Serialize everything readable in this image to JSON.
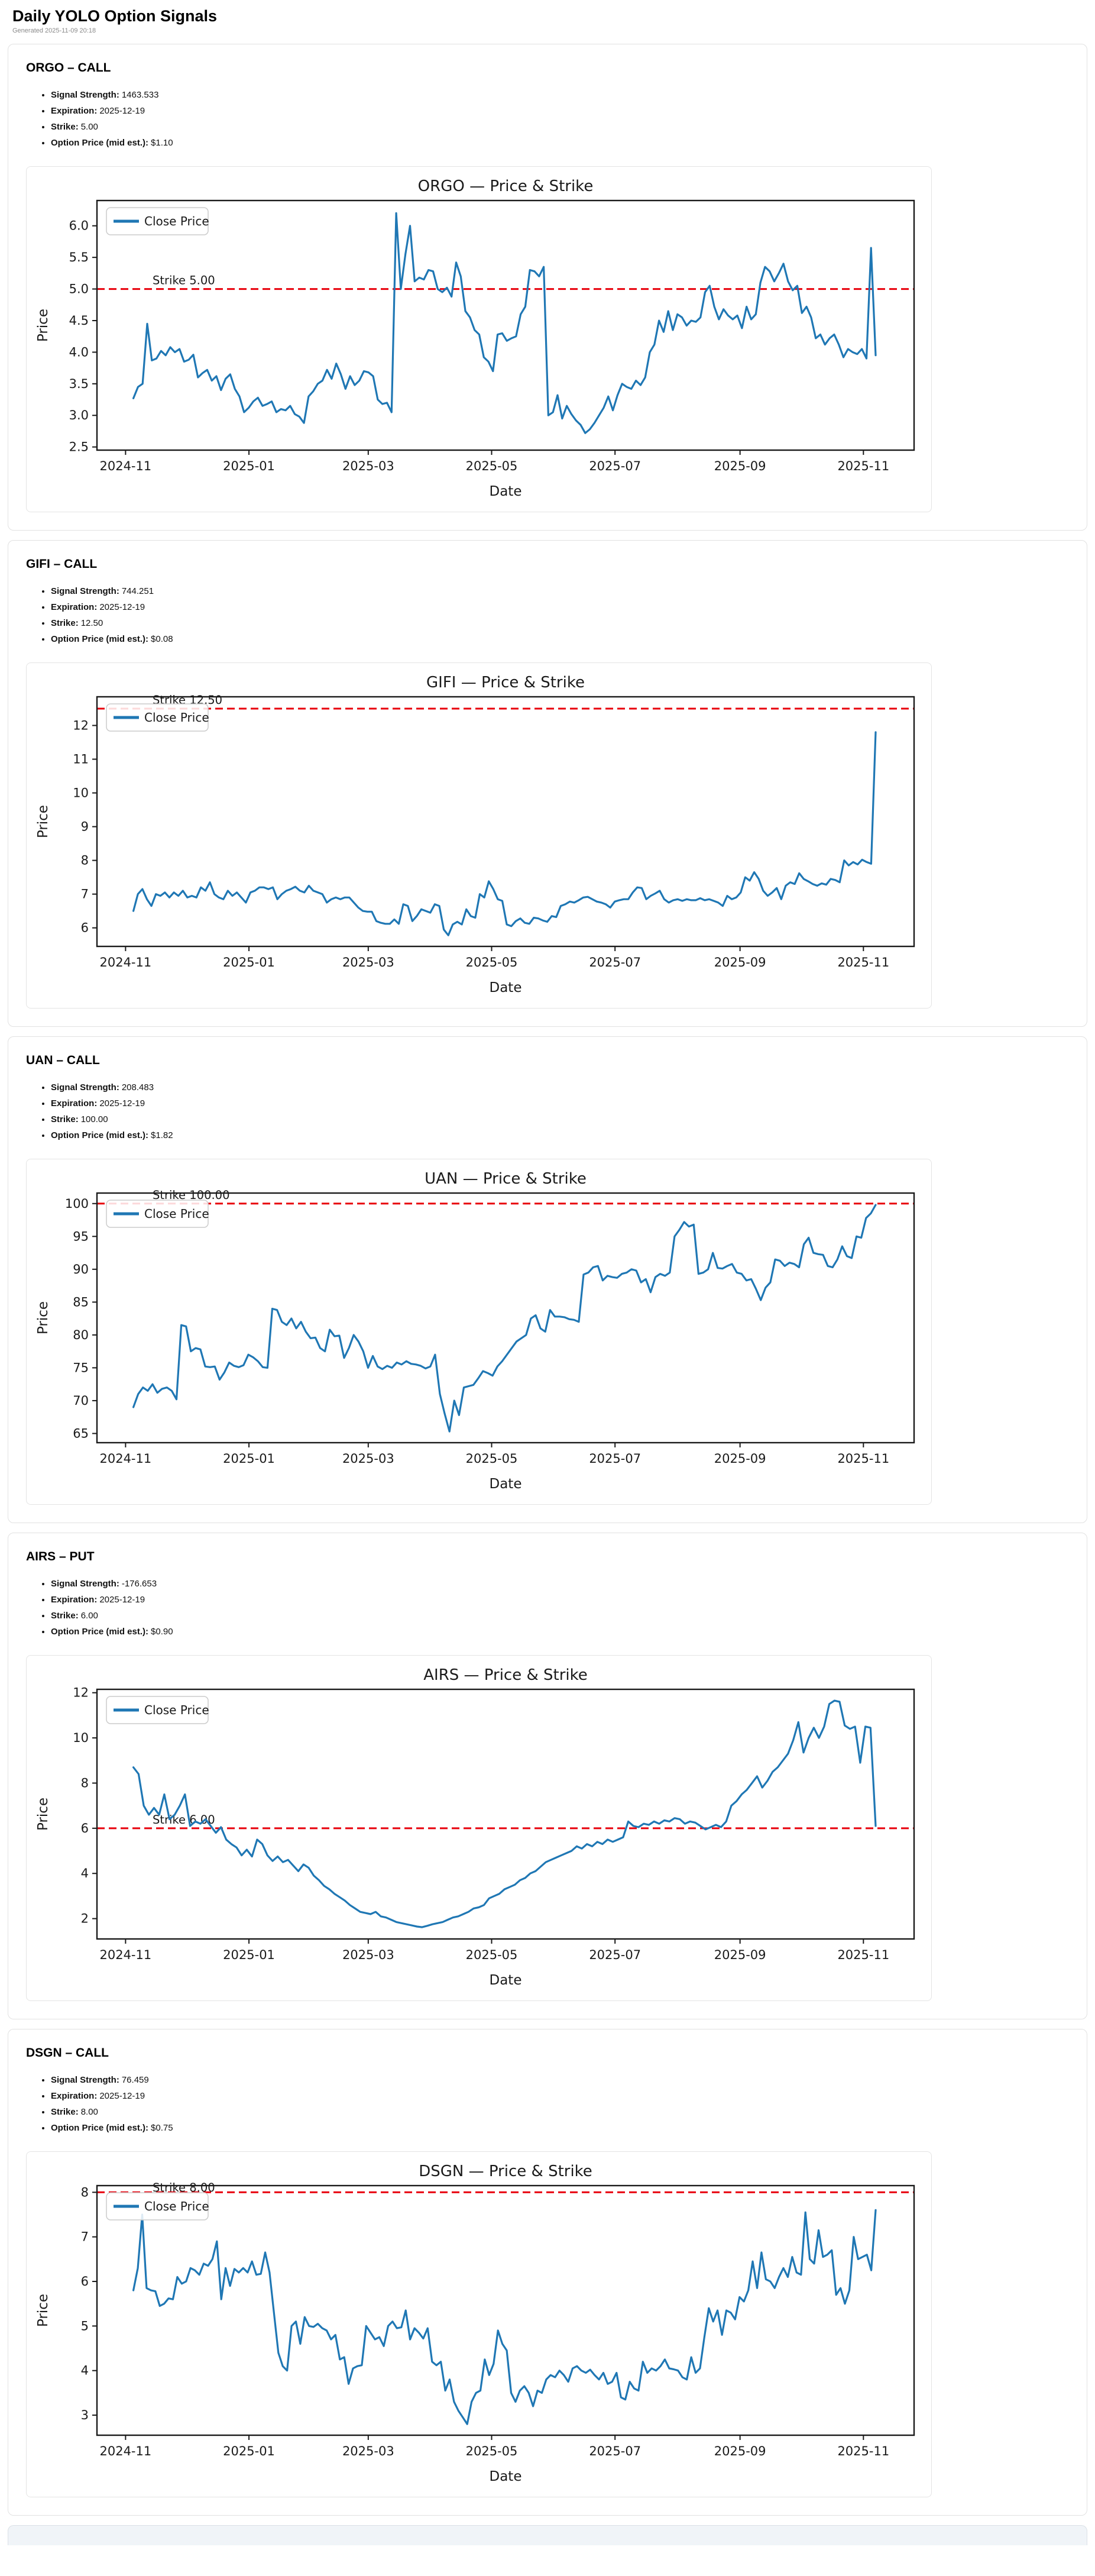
{
  "page": {
    "title": "Daily YOLO Option Signals",
    "generated": "Generated 2025-11-09 20:18"
  },
  "fact_labels": {
    "signal": "Signal Strength:",
    "expiration": "Expiration:",
    "strike": "Strike:",
    "option_price": "Option Price (mid est.):"
  },
  "sections": [
    {
      "heading": "ORGO – CALL",
      "signal": "1463.533",
      "expiration": "2025-12-19",
      "strike": "5.00",
      "option_price": "$1.10"
    },
    {
      "heading": "GIFI – CALL",
      "signal": "744.251",
      "expiration": "2025-12-19",
      "strike": "12.50",
      "option_price": "$0.08"
    },
    {
      "heading": "UAN – CALL",
      "signal": "208.483",
      "expiration": "2025-12-19",
      "strike": "100.00",
      "option_price": "$1.82"
    },
    {
      "heading": "AIRS – PUT",
      "signal": "-176.653",
      "expiration": "2025-12-19",
      "strike": "6.00",
      "option_price": "$0.90"
    },
    {
      "heading": "DSGN – CALL",
      "signal": "76.459",
      "expiration": "2025-12-19",
      "strike": "8.00",
      "option_price": "$0.75"
    }
  ],
  "chart_common": {
    "legend": "Close Price",
    "xlabel": "Date",
    "ylabel": "Price",
    "line_color": "#1f77b4",
    "strike_color": "#e8000b",
    "x_data_start": 0.0446,
    "x_data_end": 0.953,
    "x_ticks": [
      {
        "f": 0.035,
        "label": "2024-11"
      },
      {
        "f": 0.186,
        "label": "2025-01"
      },
      {
        "f": 0.332,
        "label": "2025-03"
      },
      {
        "f": 0.483,
        "label": "2025-05"
      },
      {
        "f": 0.634,
        "label": "2025-07"
      },
      {
        "f": 0.787,
        "label": "2025-09"
      },
      {
        "f": 0.938,
        "label": "2025-11"
      }
    ]
  },
  "chart_data": [
    {
      "type": "line",
      "title": "ORGO — Price & Strike",
      "xlabel": "Date",
      "ylabel": "Price",
      "legend": [
        "Close Price"
      ],
      "strike": 5.0,
      "strike_label": "Strike 5.00",
      "ylim": [
        2.45,
        6.4
      ],
      "y_ticks": [
        2.5,
        3.0,
        3.5,
        4.0,
        4.5,
        5.0,
        5.5,
        6.0
      ],
      "y_tick_labels": [
        "2.5",
        "3.0",
        "3.5",
        "4.0",
        "4.5",
        "5.0",
        "5.5",
        "6.0"
      ],
      "x_range": [
        "2024-11",
        "2025-11"
      ],
      "values": [
        3.27,
        3.45,
        3.5,
        4.45,
        3.87,
        3.9,
        4.02,
        3.95,
        4.08,
        4.0,
        4.05,
        3.85,
        3.88,
        3.96,
        3.6,
        3.67,
        3.72,
        3.55,
        3.62,
        3.4,
        3.58,
        3.65,
        3.42,
        3.3,
        3.05,
        3.12,
        3.22,
        3.28,
        3.15,
        3.18,
        3.22,
        3.05,
        3.1,
        3.08,
        3.15,
        3.02,
        2.98,
        2.88,
        3.3,
        3.38,
        3.5,
        3.55,
        3.72,
        3.58,
        3.82,
        3.65,
        3.42,
        3.62,
        3.48,
        3.55,
        3.7,
        3.68,
        3.62,
        3.25,
        3.18,
        3.2,
        3.05,
        6.2,
        5.0,
        5.55,
        6.0,
        5.12,
        5.18,
        5.15,
        5.3,
        5.28,
        5.0,
        4.95,
        5.02,
        4.88,
        5.42,
        5.2,
        4.65,
        4.55,
        4.35,
        4.28,
        3.92,
        3.85,
        3.7,
        4.28,
        4.3,
        4.18,
        4.22,
        4.25,
        4.6,
        4.72,
        5.3,
        5.28,
        5.2,
        5.35,
        3.0,
        3.05,
        3.32,
        2.95,
        3.15,
        3.02,
        2.92,
        2.85,
        2.72,
        2.78,
        2.88,
        3.0,
        3.12,
        3.3,
        3.08,
        3.32,
        3.5,
        3.45,
        3.42,
        3.55,
        3.48,
        3.6,
        4.0,
        4.12,
        4.5,
        4.32,
        4.65,
        4.35,
        4.6,
        4.55,
        4.42,
        4.5,
        4.48,
        4.55,
        4.95,
        5.05,
        4.72,
        4.52,
        4.68,
        4.58,
        4.52,
        4.58,
        4.38,
        4.72,
        4.52,
        4.6,
        5.1,
        5.35,
        5.28,
        5.12,
        5.25,
        5.4,
        5.12,
        4.98,
        5.05,
        4.62,
        4.72,
        4.55,
        4.22,
        4.28,
        4.12,
        4.22,
        4.28,
        4.12,
        3.92,
        4.05,
        4.0,
        3.97,
        4.05,
        3.9,
        5.65,
        3.95
      ]
    },
    {
      "type": "line",
      "title": "GIFI — Price & Strike",
      "xlabel": "Date",
      "ylabel": "Price",
      "legend": [
        "Close Price"
      ],
      "strike": 12.5,
      "strike_label": "Strike 12.50",
      "ylim": [
        5.45,
        12.85
      ],
      "y_ticks": [
        6,
        7,
        8,
        9,
        10,
        11,
        12
      ],
      "y_tick_labels": [
        "6",
        "7",
        "8",
        "9",
        "10",
        "11",
        "12"
      ],
      "x_range": [
        "2024-11",
        "2025-11"
      ],
      "values": [
        6.5,
        7.0,
        7.15,
        6.85,
        6.65,
        7.0,
        6.95,
        7.05,
        6.9,
        7.05,
        6.95,
        7.1,
        6.9,
        6.95,
        6.9,
        7.2,
        7.1,
        7.35,
        7.0,
        6.9,
        6.85,
        7.1,
        6.95,
        7.05,
        6.9,
        6.75,
        7.05,
        7.1,
        7.2,
        7.2,
        7.15,
        7.2,
        6.85,
        7.0,
        7.1,
        7.15,
        7.22,
        7.1,
        7.05,
        7.25,
        7.1,
        7.05,
        7.0,
        6.75,
        6.85,
        6.9,
        6.85,
        6.9,
        6.9,
        6.75,
        6.6,
        6.5,
        6.48,
        6.48,
        6.2,
        6.15,
        6.12,
        6.12,
        6.25,
        6.12,
        6.7,
        6.65,
        6.2,
        6.35,
        6.55,
        6.5,
        6.45,
        6.7,
        6.65,
        5.95,
        5.78,
        6.1,
        6.18,
        6.1,
        6.55,
        6.35,
        6.3,
        7.0,
        6.9,
        7.38,
        7.15,
        6.85,
        6.8,
        6.1,
        6.05,
        6.2,
        6.28,
        6.15,
        6.12,
        6.3,
        6.28,
        6.22,
        6.18,
        6.35,
        6.32,
        6.65,
        6.7,
        6.78,
        6.75,
        6.82,
        6.9,
        6.92,
        6.85,
        6.78,
        6.75,
        6.7,
        6.6,
        6.78,
        6.82,
        6.85,
        6.85,
        7.05,
        7.2,
        7.18,
        6.85,
        6.95,
        7.02,
        7.1,
        6.85,
        6.75,
        6.82,
        6.85,
        6.8,
        6.85,
        6.82,
        6.82,
        6.88,
        6.82,
        6.85,
        6.8,
        6.75,
        6.65,
        6.95,
        6.85,
        6.9,
        7.05,
        7.5,
        7.4,
        7.65,
        7.45,
        7.1,
        6.95,
        7.05,
        7.18,
        6.85,
        7.25,
        7.35,
        7.3,
        7.62,
        7.45,
        7.38,
        7.3,
        7.25,
        7.32,
        7.28,
        7.45,
        7.42,
        7.35,
        8.0,
        7.85,
        7.95,
        7.88,
        8.02,
        7.95,
        7.9,
        11.8
      ]
    },
    {
      "type": "line",
      "title": "UAN — Price & Strike",
      "xlabel": "Date",
      "ylabel": "Price",
      "legend": [
        "Close Price"
      ],
      "strike": 100.0,
      "strike_label": "Strike 100.00",
      "ylim": [
        63.6,
        101.6
      ],
      "y_ticks": [
        65,
        70,
        75,
        80,
        85,
        90,
        95,
        100
      ],
      "y_tick_labels": [
        "65",
        "70",
        "75",
        "80",
        "85",
        "90",
        "95",
        "100"
      ],
      "x_range": [
        "2024-11",
        "2025-11"
      ],
      "values": [
        69,
        71,
        72,
        71.5,
        72.5,
        71.2,
        71.8,
        72,
        71.5,
        70.2,
        81.5,
        81.3,
        77.5,
        78,
        77.8,
        75.2,
        75.1,
        75.2,
        73.2,
        74.3,
        75.8,
        75.3,
        75.1,
        75.4,
        77,
        76.6,
        76,
        75.1,
        75,
        84,
        83.8,
        82,
        81.5,
        82.5,
        81,
        82,
        80.5,
        79.5,
        79.6,
        78,
        77.5,
        80.8,
        79.8,
        79.9,
        76.5,
        78,
        80,
        79,
        77.5,
        75,
        76.8,
        75.2,
        74.8,
        75.3,
        75,
        75.8,
        75.5,
        76,
        75.6,
        75.5,
        75.3,
        74.9,
        75.2,
        77,
        71,
        68,
        65.3,
        70,
        67.8,
        72,
        72.2,
        72.4,
        73.4,
        74.5,
        74.2,
        73.8,
        75.2,
        76,
        77,
        78,
        79,
        79.5,
        80,
        82.5,
        83,
        81,
        80.5,
        83.8,
        82.8,
        82.8,
        82.7,
        82.4,
        82.3,
        82,
        89.2,
        89.5,
        90.3,
        90.5,
        88.3,
        89,
        88.8,
        88.7,
        89.3,
        89.5,
        90,
        89.8,
        88,
        88.5,
        86.5,
        88.8,
        89.3,
        89,
        89.5,
        95,
        96,
        97.2,
        96.5,
        96.8,
        89.3,
        89.5,
        90,
        92.5,
        90.2,
        90.1,
        90.5,
        90.8,
        89.5,
        89.3,
        88.3,
        88.5,
        87,
        85.3,
        87.2,
        88,
        91.5,
        91.3,
        90.5,
        91,
        90.8,
        90.3,
        93.8,
        94.8,
        92.5,
        92.3,
        92.2,
        90.5,
        90.3,
        91.5,
        93.5,
        92,
        91.7,
        95,
        94.8,
        97.8,
        98.5,
        99.8
      ]
    },
    {
      "type": "line",
      "title": "AIRS — Price & Strike",
      "xlabel": "Date",
      "ylabel": "Price",
      "legend": [
        "Close Price"
      ],
      "strike": 6.0,
      "strike_label": "Strike 6.00",
      "ylim": [
        1.1,
        12.15
      ],
      "y_ticks": [
        2,
        4,
        6,
        8,
        10,
        12
      ],
      "y_tick_labels": [
        "2",
        "4",
        "6",
        "8",
        "10",
        "12"
      ],
      "x_range": [
        "2024-11",
        "2025-11"
      ],
      "values": [
        8.7,
        8.4,
        7.0,
        6.6,
        6.9,
        6.6,
        7.5,
        6.4,
        6.6,
        7.0,
        7.5,
        6.1,
        6.3,
        6.2,
        6.4,
        6.1,
        5.8,
        6.05,
        5.5,
        5.3,
        5.15,
        4.8,
        5.05,
        4.75,
        5.5,
        5.3,
        4.8,
        4.55,
        4.75,
        4.5,
        4.6,
        4.35,
        4.1,
        4.4,
        4.25,
        3.9,
        3.7,
        3.45,
        3.3,
        3.1,
        2.95,
        2.8,
        2.6,
        2.45,
        2.3,
        2.25,
        2.2,
        2.3,
        2.1,
        2.05,
        1.95,
        1.85,
        1.8,
        1.75,
        1.7,
        1.65,
        1.62,
        1.68,
        1.75,
        1.8,
        1.85,
        1.95,
        2.05,
        2.1,
        2.2,
        2.3,
        2.45,
        2.5,
        2.6,
        2.9,
        3.0,
        3.1,
        3.3,
        3.4,
        3.5,
        3.7,
        3.8,
        4.0,
        4.1,
        4.3,
        4.5,
        4.6,
        4.7,
        4.8,
        4.9,
        5.0,
        5.2,
        5.1,
        5.3,
        5.2,
        5.4,
        5.3,
        5.5,
        5.4,
        5.5,
        5.6,
        6.3,
        6.1,
        6.05,
        6.2,
        6.15,
        6.3,
        6.2,
        6.35,
        6.3,
        6.45,
        6.4,
        6.2,
        6.3,
        6.25,
        6.1,
        5.95,
        6.05,
        6.15,
        6.05,
        6.3,
        7.0,
        7.2,
        7.5,
        7.7,
        8.0,
        8.3,
        7.8,
        8.1,
        8.5,
        8.7,
        9.0,
        9.3,
        9.9,
        10.7,
        9.35,
        10.0,
        10.45,
        10.0,
        10.5,
        11.5,
        11.65,
        11.6,
        10.55,
        10.4,
        10.5,
        8.9,
        10.5,
        10.45,
        6.1
      ]
    },
    {
      "type": "line",
      "title": "DSGN — Price & Strike",
      "xlabel": "Date",
      "ylabel": "Price",
      "legend": [
        "Close Price"
      ],
      "strike": 8.0,
      "strike_label": "Strike 8.00",
      "ylim": [
        2.55,
        8.15
      ],
      "y_ticks": [
        3,
        4,
        5,
        6,
        7,
        8
      ],
      "y_tick_labels": [
        "3",
        "4",
        "5",
        "6",
        "7",
        "8"
      ],
      "x_range": [
        "2024-11",
        "2025-11"
      ],
      "values": [
        5.8,
        6.3,
        7.5,
        5.85,
        5.8,
        5.78,
        5.45,
        5.5,
        5.62,
        5.6,
        6.1,
        5.95,
        6.0,
        6.3,
        6.25,
        6.15,
        6.4,
        6.35,
        6.5,
        6.9,
        5.6,
        6.3,
        5.9,
        6.28,
        6.2,
        6.3,
        6.2,
        6.45,
        6.15,
        6.17,
        6.65,
        6.2,
        5.3,
        4.4,
        4.1,
        4.0,
        5.0,
        5.1,
        4.6,
        5.2,
        5.0,
        4.98,
        5.05,
        4.95,
        4.9,
        4.7,
        4.8,
        4.25,
        4.3,
        3.7,
        4.05,
        4.1,
        4.12,
        5.0,
        4.85,
        4.7,
        4.75,
        4.55,
        5.0,
        5.1,
        4.95,
        4.97,
        5.35,
        4.7,
        4.95,
        4.85,
        4.72,
        4.95,
        4.2,
        4.12,
        4.2,
        3.55,
        3.8,
        3.3,
        3.1,
        2.95,
        2.8,
        3.3,
        3.5,
        3.55,
        4.25,
        3.9,
        4.15,
        4.9,
        4.6,
        4.45,
        3.5,
        3.3,
        3.55,
        3.65,
        3.5,
        3.2,
        3.55,
        3.5,
        3.8,
        3.9,
        3.85,
        4.0,
        3.9,
        3.75,
        4.05,
        4.1,
        4.0,
        3.95,
        4.02,
        3.9,
        3.8,
        3.95,
        3.7,
        3.75,
        3.95,
        3.4,
        3.35,
        3.75,
        3.6,
        3.55,
        4.2,
        3.95,
        4.05,
        4.0,
        4.1,
        4.25,
        4.05,
        4.03,
        4.0,
        3.85,
        3.8,
        4.3,
        3.95,
        4.05,
        4.75,
        5.4,
        5.1,
        5.35,
        4.8,
        5.35,
        5.3,
        5.15,
        5.65,
        5.55,
        5.8,
        6.45,
        5.85,
        6.65,
        6.05,
        6.0,
        5.85,
        6.1,
        6.3,
        6.1,
        6.55,
        6.2,
        6.15,
        7.55,
        6.5,
        6.4,
        7.15,
        6.55,
        6.6,
        6.7,
        5.7,
        5.85,
        5.5,
        5.8,
        7.0,
        6.5,
        6.55,
        6.6,
        6.25,
        7.6
      ]
    }
  ]
}
